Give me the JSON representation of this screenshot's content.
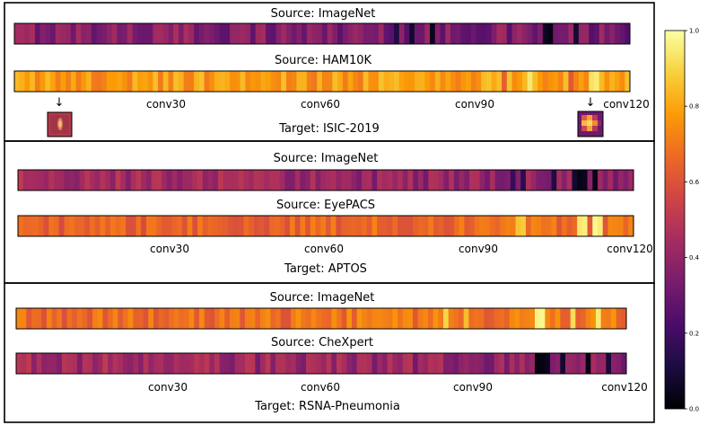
{
  "chart_data": {
    "type": "heatmap",
    "num_layers": 120,
    "layer_tick_labels": [
      "conv30",
      "conv60",
      "conv90",
      "conv120"
    ],
    "layer_tick_positions": [
      30,
      60,
      90,
      120
    ],
    "colormap": "inferno",
    "colormap_stops": [
      "#000004",
      "#1b0c41",
      "#4a0c6b",
      "#781c6d",
      "#a52c60",
      "#cf4446",
      "#ed6925",
      "#fb9b06",
      "#f7d13d",
      "#fcffa4"
    ],
    "colorbar": {
      "range": [
        0.0,
        1.0
      ],
      "tick_labels": [
        "0.0",
        "0.2",
        "0.4",
        "0.6",
        "0.8",
        "1.0"
      ]
    },
    "panels": [
      {
        "target": "Target: ISIC-2019",
        "rows": [
          {
            "label": "Source: ImageNet",
            "base": 0.38,
            "variation": 0.1,
            "trend": -0.05,
            "dark_spots": [
              [
                74,
                0.12
              ],
              [
                77,
                0.08
              ],
              [
                81,
                0.05
              ],
              [
                103,
                0.06
              ],
              [
                104,
                0.03
              ],
              [
                109,
                0.09
              ]
            ],
            "bright_spots": []
          },
          {
            "label": "Source: HAM10K",
            "base": 0.77,
            "variation": 0.08,
            "trend": 0.02,
            "dark_spots": [
              [
                95,
                0.64
              ],
              [
                108,
                0.62
              ]
            ],
            "bright_spots": [
              [
                100,
                0.94
              ],
              [
                112,
                0.93
              ],
              [
                113,
                0.95
              ]
            ]
          }
        ],
        "inset_labels": [
          "↓",
          "↓"
        ]
      },
      {
        "target": "Target: APTOS",
        "rows": [
          {
            "label": "Source: ImageNet",
            "base": 0.45,
            "variation": 0.08,
            "trend": -0.08,
            "dark_spots": [
              [
                96,
                0.18
              ],
              [
                98,
                0.15
              ],
              [
                104,
                0.12
              ],
              [
                108,
                0.08
              ],
              [
                109,
                0.03
              ],
              [
                110,
                0.05
              ],
              [
                112,
                0.04
              ]
            ],
            "bright_spots": []
          },
          {
            "label": "Source: EyePACS",
            "base": 0.63,
            "variation": 0.07,
            "trend": 0.05,
            "dark_spots": [],
            "bright_spots": [
              [
                97,
                0.86
              ],
              [
                98,
                0.88
              ],
              [
                109,
                0.94
              ],
              [
                110,
                0.96
              ],
              [
                112,
                0.98
              ],
              [
                113,
                0.95
              ]
            ]
          }
        ]
      },
      {
        "target": "Target: RSNA-Pneumonia",
        "rows": [
          {
            "label": "Source: ImageNet",
            "base": 0.66,
            "variation": 0.08,
            "trend": 0.04,
            "dark_spots": [],
            "bright_spots": [
              [
                84,
                0.9
              ],
              [
                88,
                0.85
              ],
              [
                102,
                0.97
              ],
              [
                103,
                0.98
              ],
              [
                109,
                0.92
              ],
              [
                114,
                0.95
              ]
            ]
          },
          {
            "label": "Source: CheXpert",
            "base": 0.44,
            "variation": 0.09,
            "trend": -0.06,
            "dark_spots": [
              [
                102,
                0.02
              ],
              [
                103,
                0.03
              ],
              [
                104,
                0.05
              ],
              [
                107,
                0.08
              ],
              [
                112,
                0.03
              ],
              [
                116,
                0.1
              ]
            ],
            "bright_spots": []
          }
        ]
      }
    ]
  }
}
